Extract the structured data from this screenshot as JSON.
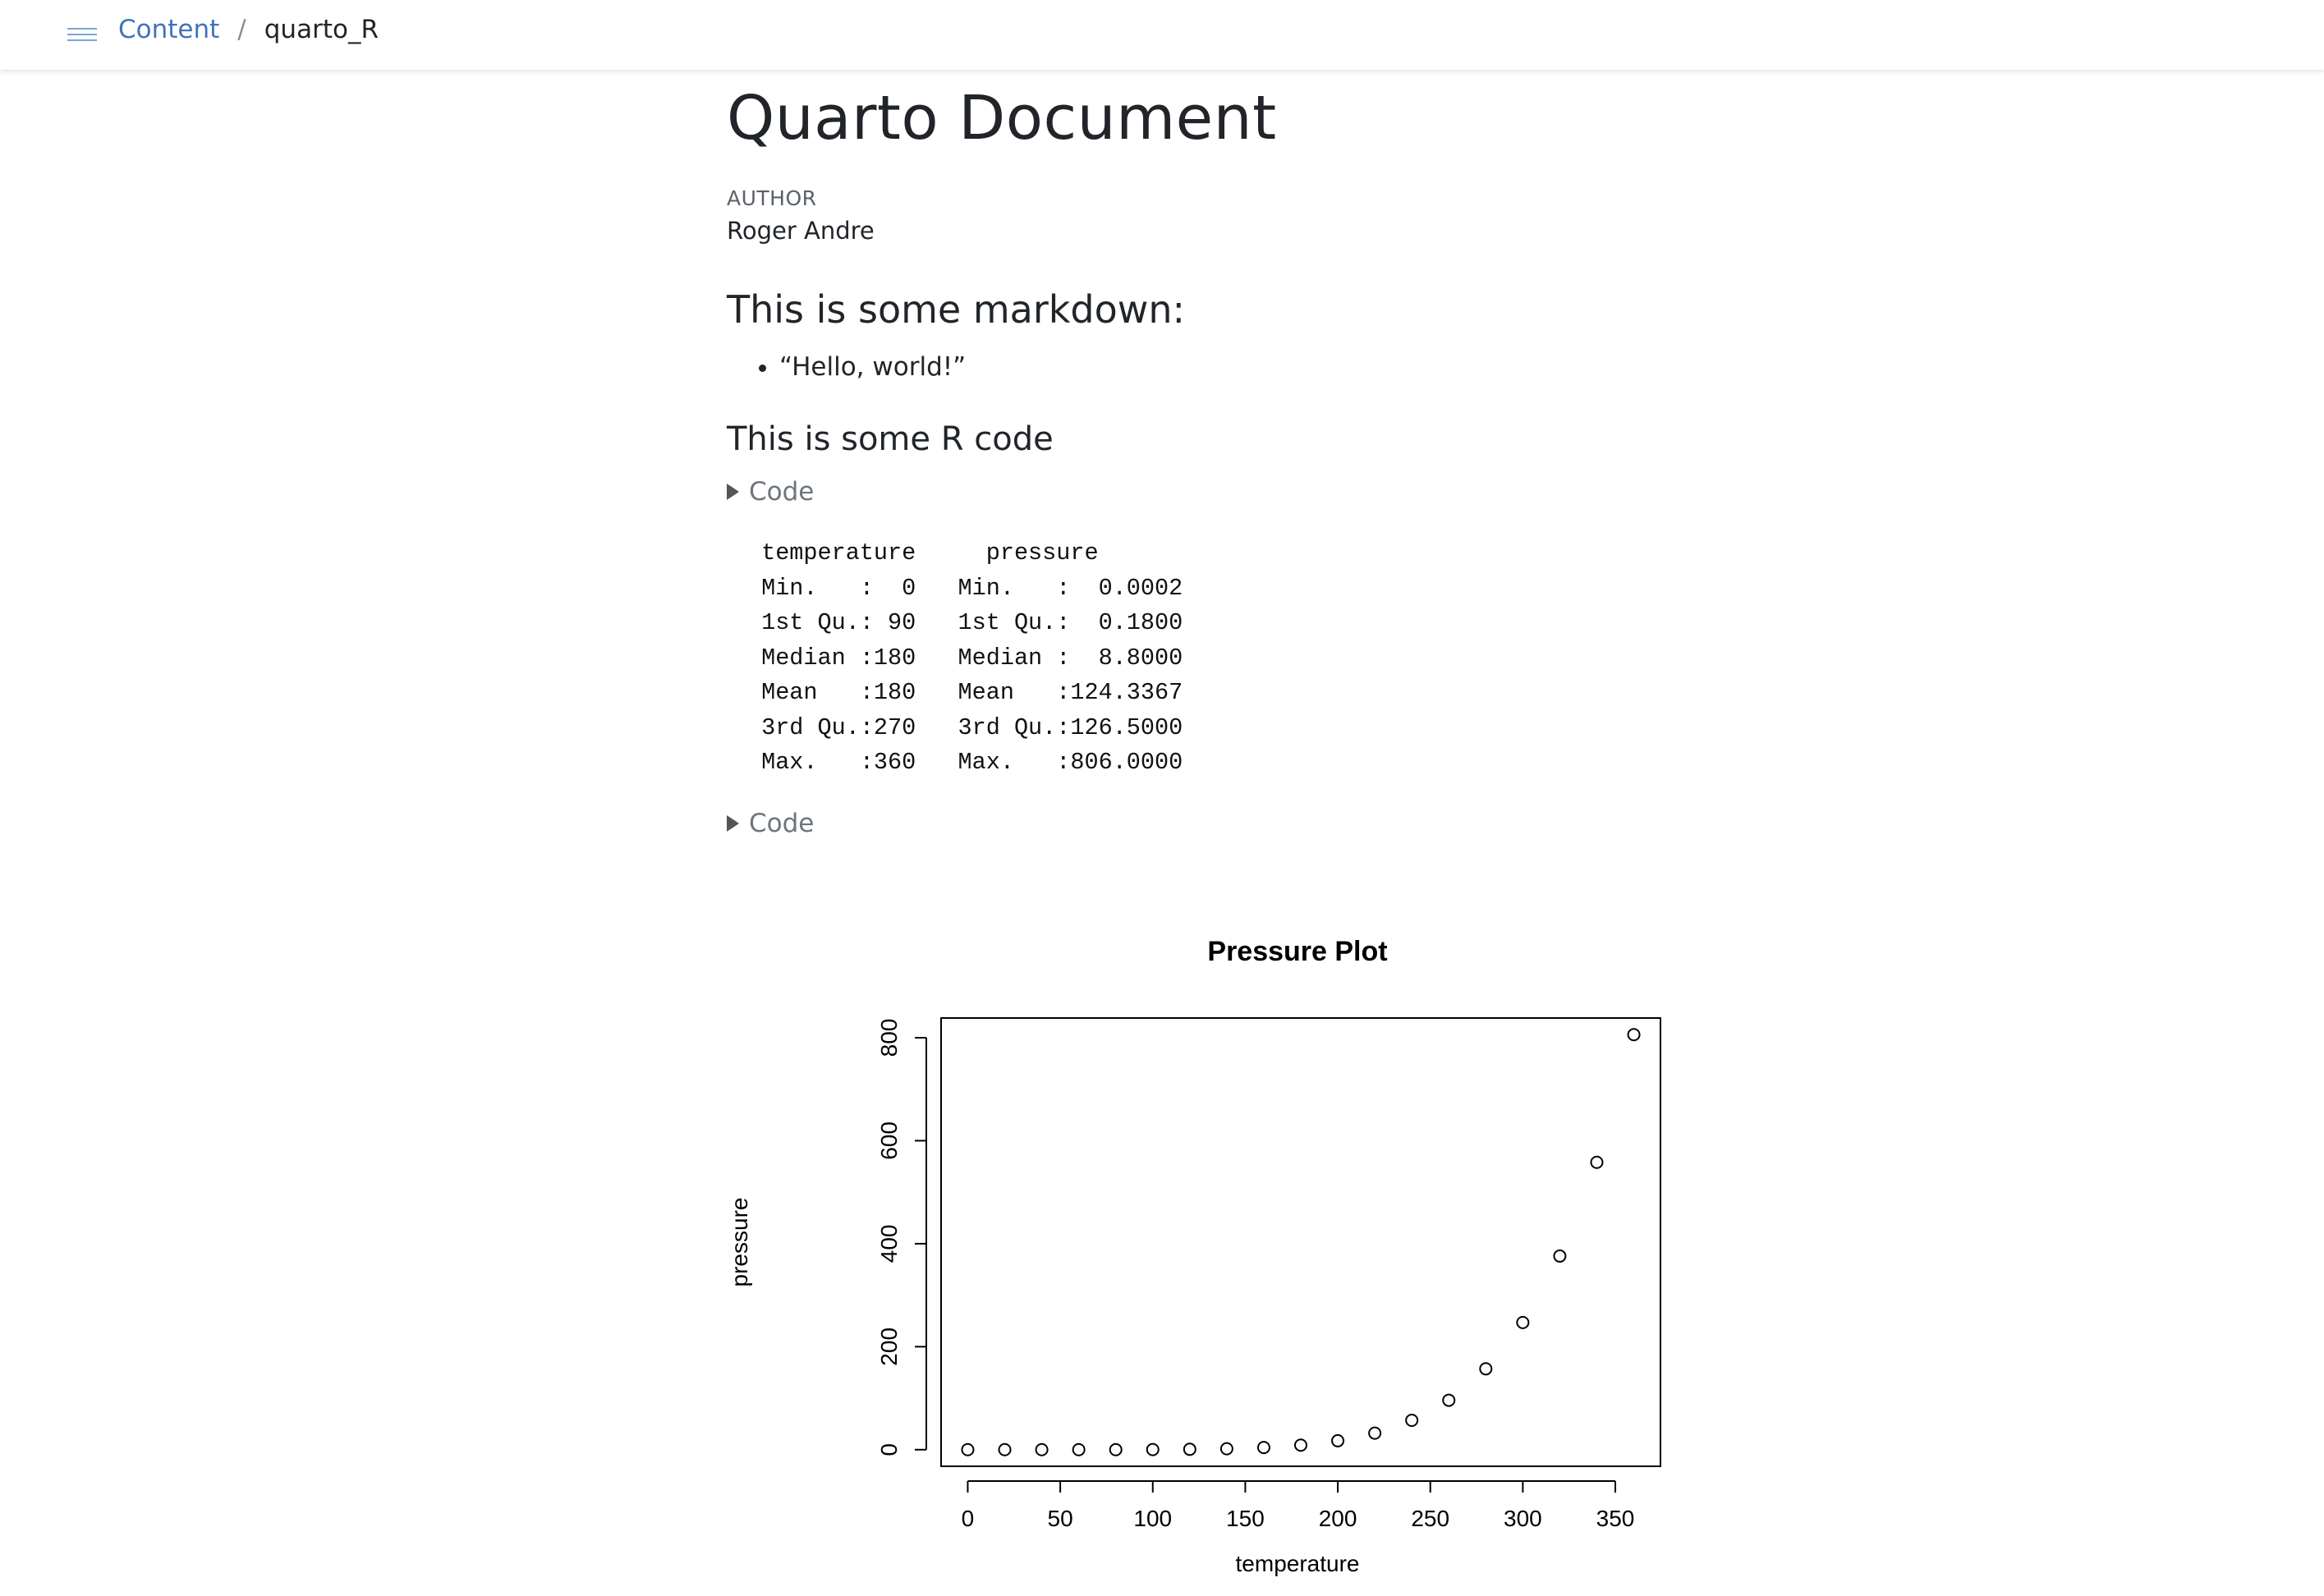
{
  "header": {
    "menu_icon": "hamburger-icon",
    "breadcrumb": {
      "root": "Content",
      "separator": "/",
      "current": "quarto_R"
    },
    "accent_color": "#3f75b8"
  },
  "document": {
    "title": "Quarto Document",
    "author_heading": "AUTHOR",
    "author": "Roger Andre",
    "section1_heading": "This is some markdown:",
    "bullets": [
      "“Hello, world!”"
    ],
    "section2_heading": "This is some R code",
    "code_toggle_1": "Code",
    "summary_output": " temperature     pressure      \n Min.   :  0   Min.   :  0.0002  \n 1st Qu.: 90   1st Qu.:  0.1800  \n Median :180   Median :  8.8000  \n Mean   :180   Mean   :124.3367  \n 3rd Qu.:270   3rd Qu.:126.5000  \n Max.   :360   Max.   :806.0000  ",
    "code_toggle_2": "Code"
  },
  "chart_data": {
    "type": "scatter",
    "title": "Pressure Plot",
    "xlabel": "temperature",
    "ylabel": "pressure",
    "xlim": [
      -14.4,
      374.4
    ],
    "ylim": [
      -32.24,
      838.24
    ],
    "xticks": [
      0,
      50,
      100,
      150,
      200,
      250,
      300,
      350
    ],
    "yticks": [
      0,
      200,
      400,
      600,
      800
    ],
    "x": [
      0,
      20,
      40,
      60,
      80,
      100,
      120,
      140,
      160,
      180,
      200,
      220,
      240,
      260,
      280,
      300,
      320,
      340,
      360
    ],
    "y": [
      0.0002,
      0.0012,
      0.006,
      0.03,
      0.09,
      0.27,
      0.75,
      1.85,
      4.2,
      8.8,
      17.3,
      32.1,
      57.0,
      96.0,
      157.0,
      247.0,
      376.0,
      558.0,
      806.0
    ],
    "marker": "open-circle",
    "grid": false
  }
}
